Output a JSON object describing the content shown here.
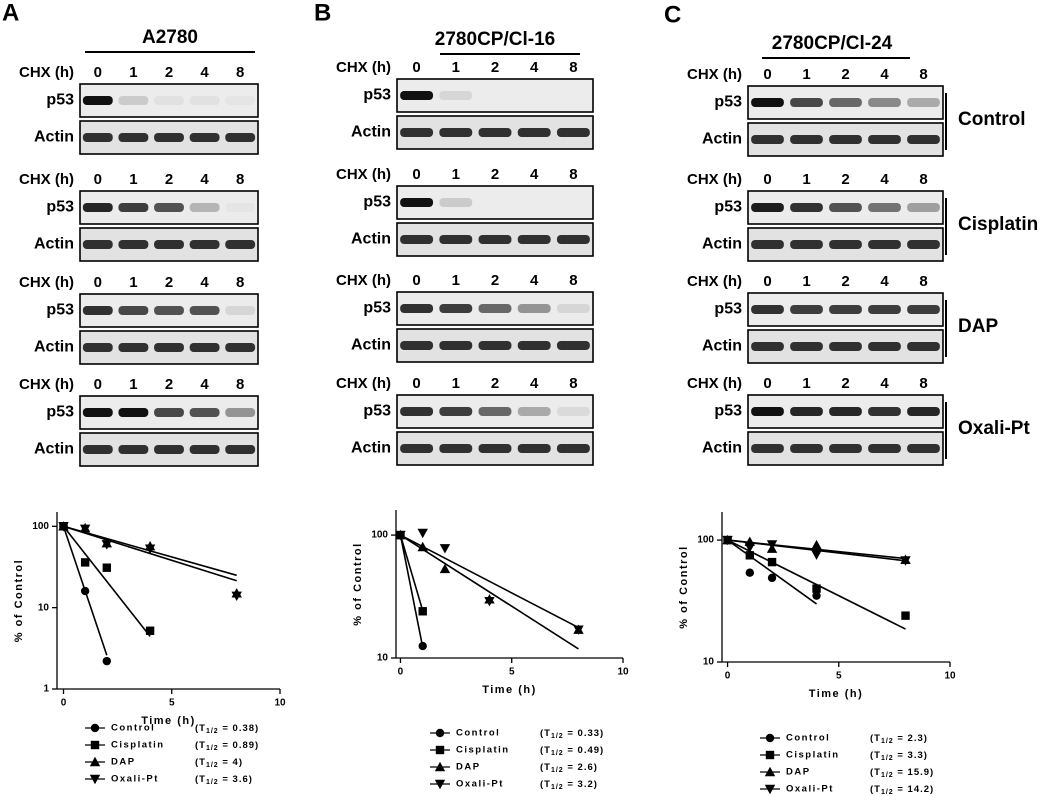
{
  "panels": [
    {
      "label": "A",
      "cell_line": "A2780",
      "groups": [
        {
          "chx": "CHX (h)",
          "times": [
            "0",
            "1",
            "2",
            "4",
            "8"
          ],
          "rows": [
            "p53",
            "Actin"
          ]
        },
        {
          "chx": "CHX (h)",
          "times": [
            "0",
            "1",
            "2",
            "4",
            "8"
          ],
          "rows": [
            "p53",
            "Actin"
          ]
        },
        {
          "chx": "CHX (h)",
          "times": [
            "0",
            "1",
            "2",
            "4",
            "8"
          ],
          "rows": [
            "p53",
            "Actin"
          ]
        },
        {
          "chx": "CHX (h)",
          "times": [
            "0",
            "1",
            "2",
            "4",
            "8"
          ],
          "rows": [
            "p53",
            "Actin"
          ]
        }
      ]
    },
    {
      "label": "B",
      "cell_line": "2780CP/Cl-16",
      "groups": [
        {
          "chx": "CHX (h)",
          "times": [
            "0",
            "1",
            "2",
            "4",
            "8"
          ],
          "rows": [
            "p53",
            "Actin"
          ]
        },
        {
          "chx": "CHX (h)",
          "times": [
            "0",
            "1",
            "2",
            "4",
            "8"
          ],
          "rows": [
            "p53",
            "Actin"
          ]
        },
        {
          "chx": "CHX (h)",
          "times": [
            "0",
            "1",
            "2",
            "4",
            "8"
          ],
          "rows": [
            "p53",
            "Actin"
          ]
        },
        {
          "chx": "CHX (h)",
          "times": [
            "0",
            "1",
            "2",
            "4",
            "8"
          ],
          "rows": [
            "p53",
            "Actin"
          ]
        }
      ]
    },
    {
      "label": "C",
      "cell_line": "2780CP/Cl-24",
      "groups": [
        {
          "chx": "CHX (h)",
          "times": [
            "0",
            "1",
            "2",
            "4",
            "8"
          ],
          "rows": [
            "p53",
            "Actin"
          ]
        },
        {
          "chx": "CHX (h)",
          "times": [
            "0",
            "1",
            "2",
            "4",
            "8"
          ],
          "rows": [
            "p53",
            "Actin"
          ]
        },
        {
          "chx": "CHX (h)",
          "times": [
            "0",
            "1",
            "2",
            "4",
            "8"
          ],
          "rows": [
            "p53",
            "Actin"
          ]
        },
        {
          "chx": "CHX (h)",
          "times": [
            "0",
            "1",
            "2",
            "4",
            "8"
          ],
          "rows": [
            "p53",
            "Actin"
          ]
        }
      ]
    }
  ],
  "side_labels": [
    "Control",
    "Cisplatin",
    "DAP",
    "Oxali-Pt"
  ],
  "chart_data": [
    {
      "type": "scatter",
      "x_label": "Time (h)",
      "y_label": "% of Control",
      "log_y": true,
      "xlim": [
        -0.3,
        10
      ],
      "xticks": [
        0,
        5,
        10
      ],
      "ylim": [
        1,
        150
      ],
      "yticks": [
        1,
        10,
        100
      ],
      "half_life_text": {
        "open": "(T",
        "sub": "1/2",
        "eq": " = ",
        "close": ")"
      },
      "series": [
        {
          "name": "Control",
          "color": "#000000",
          "marker": "circle",
          "half_life": 0.38,
          "x": [
            0,
            1,
            2
          ],
          "values": [
            100,
            16,
            2.2
          ]
        },
        {
          "name": "Cisplatin",
          "color": "#000000",
          "marker": "square",
          "half_life": 0.89,
          "x": [
            0,
            1,
            2,
            4
          ],
          "values": [
            100,
            36,
            31,
            5.2
          ]
        },
        {
          "name": "DAP",
          "color": "#000000",
          "marker": "triangle-up",
          "half_life": 4.0,
          "x": [
            0,
            1,
            2,
            4,
            8
          ],
          "values": [
            100,
            95,
            62,
            57,
            15
          ]
        },
        {
          "name": "Oxali-Pt",
          "color": "#000000",
          "marker": "triangle-down",
          "half_life": 3.6,
          "x": [
            0,
            1,
            2,
            4,
            8
          ],
          "values": [
            100,
            93,
            60,
            53,
            14
          ]
        }
      ]
    },
    {
      "type": "scatter",
      "x_label": "Time (h)",
      "y_label": "% of Control",
      "log_y": true,
      "xlim": [
        -0.2,
        10
      ],
      "xticks": [
        0,
        5,
        10
      ],
      "ylim": [
        10,
        160
      ],
      "yticks": [
        10,
        100
      ],
      "half_life_text": {
        "open": "(T",
        "sub": "1/2",
        "eq": " = ",
        "close": ")"
      },
      "series": [
        {
          "name": "Control",
          "color": "#000000",
          "marker": "circle",
          "half_life": 0.33,
          "x": [
            0,
            1
          ],
          "values": [
            100,
            12.5
          ]
        },
        {
          "name": "Cisplatin",
          "color": "#000000",
          "marker": "square",
          "half_life": 0.49,
          "x": [
            0,
            1
          ],
          "values": [
            100,
            24
          ]
        },
        {
          "name": "DAP",
          "color": "#000000",
          "marker": "triangle-up",
          "half_life": 2.6,
          "x": [
            0,
            1,
            2,
            4,
            8
          ],
          "values": [
            100,
            80,
            53,
            30,
            17
          ]
        },
        {
          "name": "Oxali-Pt",
          "color": "#000000",
          "marker": "triangle-down",
          "half_life": 3.2,
          "x": [
            0,
            1,
            2,
            4,
            8
          ],
          "values": [
            100,
            104,
            78,
            29,
            17
          ]
        }
      ]
    },
    {
      "type": "scatter",
      "x_label": "Time (h)",
      "y_label": "% of Control",
      "log_y": true,
      "xlim": [
        -0.25,
        10
      ],
      "xticks": [
        0,
        5,
        10
      ],
      "ylim": [
        10,
        170
      ],
      "yticks": [
        10,
        100
      ],
      "half_life_text": {
        "open": "(T",
        "sub": "1/2",
        "eq": " = ",
        "close": ")"
      },
      "series": [
        {
          "name": "Control",
          "color": "#000000",
          "marker": "circle",
          "half_life": 2.3,
          "x": [
            0,
            1,
            2,
            4
          ],
          "values": [
            100,
            54,
            49,
            35
          ]
        },
        {
          "name": "Cisplatin",
          "color": "#000000",
          "marker": "square",
          "half_life": 3.3,
          "x": [
            0,
            1,
            2,
            4,
            8
          ],
          "values": [
            100,
            75,
            66,
            40,
            24
          ]
        },
        {
          "name": "DAP",
          "color": "#000000",
          "marker": "triangle-up",
          "half_life": 15.9,
          "x": [
            0,
            1,
            2,
            4,
            8
          ],
          "values": [
            100,
            97,
            85,
            91,
            69
          ]
        },
        {
          "name": "Oxali-Pt",
          "color": "#000000",
          "marker": "triangle-down",
          "half_life": 14.2,
          "x": [
            0,
            1,
            2,
            4,
            8
          ],
          "values": [
            100,
            87,
            92,
            76,
            68
          ]
        }
      ]
    }
  ]
}
